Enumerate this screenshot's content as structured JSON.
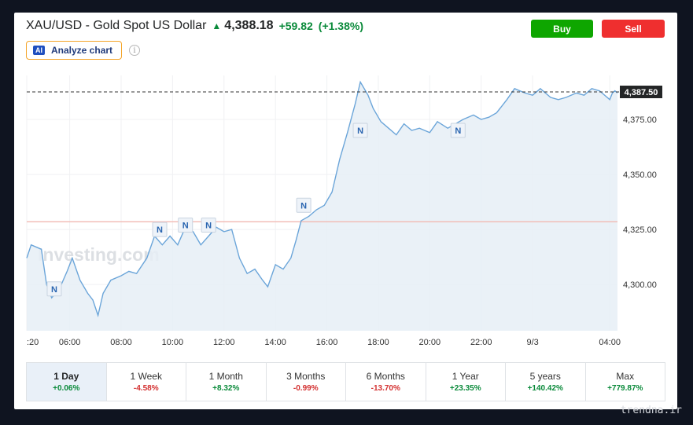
{
  "header": {
    "title": "XAU/USD - Gold Spot US Dollar",
    "price": "4,388.18",
    "change": "+59.82",
    "change_pct": "(+1.38%)",
    "direction_icon": "arrow-up-icon",
    "buy_label": "Buy",
    "sell_label": "Sell",
    "analyze_badge": "AI",
    "analyze_label": "Analyze chart",
    "info_icon": "i"
  },
  "colors": {
    "up": "#0a8a3a",
    "down": "#d32f2f",
    "buy": "#0ea600",
    "sell": "#ef2f2f",
    "line": "#6ba5d9",
    "area": "#e6eef6",
    "ref_line": "#f2b8b2",
    "last_price_bg": "#232526"
  },
  "chart_data": {
    "type": "area",
    "x_labels": [
      ":20",
      "06:00",
      "08:00",
      "10:00",
      "12:00",
      "14:00",
      "16:00",
      "18:00",
      "20:00",
      "22:00",
      "9/3",
      "04:00"
    ],
    "x_label_hours": [
      4.33,
      6,
      8,
      10,
      12,
      14,
      16,
      18,
      20,
      22,
      24,
      27
    ],
    "y_ticks": [
      4300,
      4325,
      4350,
      4375
    ],
    "y_tick_labels": [
      "4,300.00",
      "4,325.00",
      "4,350.00",
      "4,375.00"
    ],
    "ylim": [
      4279,
      4395
    ],
    "xlim": [
      4.33,
      27.3
    ],
    "reference_value": 4328.5,
    "last_value": 4387.5,
    "last_label": "4,387.50",
    "watermark": "Investing.com",
    "x": [
      4.33,
      4.5,
      4.9,
      5.1,
      5.3,
      5.6,
      5.9,
      6.1,
      6.4,
      6.7,
      6.9,
      7.1,
      7.3,
      7.6,
      8.0,
      8.3,
      8.6,
      9.0,
      9.3,
      9.6,
      9.9,
      10.2,
      10.5,
      10.8,
      11.1,
      11.4,
      11.7,
      12.0,
      12.3,
      12.6,
      12.9,
      13.2,
      13.5,
      13.7,
      14.0,
      14.3,
      14.6,
      14.8,
      15.0,
      15.3,
      15.6,
      15.9,
      16.2,
      16.5,
      16.8,
      17.1,
      17.3,
      17.6,
      17.8,
      18.1,
      18.4,
      18.7,
      19.0,
      19.3,
      19.6,
      20.0,
      20.3,
      20.7,
      21.0,
      21.3,
      21.7,
      22.0,
      22.3,
      22.6,
      23.0,
      23.3,
      23.7,
      24.0,
      24.3,
      24.7,
      25.0,
      25.3,
      25.7,
      26.0,
      26.3,
      26.6,
      27.0,
      27.1,
      27.2,
      27.3
    ],
    "y": [
      4312,
      4318,
      4316,
      4300,
      4294,
      4298,
      4306,
      4312,
      4302,
      4296,
      4293,
      4286,
      4296,
      4302,
      4304,
      4306,
      4305,
      4312,
      4322,
      4318,
      4322,
      4318,
      4326,
      4324,
      4318,
      4322,
      4326,
      4324,
      4325,
      4312,
      4305,
      4307,
      4302,
      4299,
      4309,
      4307,
      4312,
      4320,
      4329,
      4331,
      4334,
      4336,
      4342,
      4357,
      4369,
      4382,
      4392,
      4386,
      4380,
      4374,
      4371,
      4368,
      4373,
      4370,
      4371,
      4369,
      4374,
      4371,
      4373,
      4375,
      4377,
      4375,
      4376,
      4378,
      4384,
      4389,
      4387,
      4386,
      4389,
      4385,
      4384,
      4385,
      4387,
      4386,
      4389,
      4388,
      4384,
      4387,
      4388,
      4387
    ],
    "news_markers": [
      {
        "x": 5.4,
        "y": 4298,
        "label": "N"
      },
      {
        "x": 9.5,
        "y": 4325,
        "label": "N"
      },
      {
        "x": 10.5,
        "y": 4327,
        "label": "N"
      },
      {
        "x": 11.4,
        "y": 4327,
        "label": "N"
      },
      {
        "x": 15.1,
        "y": 4336,
        "label": "N"
      },
      {
        "x": 17.3,
        "y": 4370,
        "label": "N"
      },
      {
        "x": 21.1,
        "y": 4370,
        "label": "N"
      }
    ]
  },
  "periods": [
    {
      "label": "1 Day",
      "change": "+0.06%",
      "dir": "up",
      "active": true
    },
    {
      "label": "1 Week",
      "change": "-4.58%",
      "dir": "down",
      "active": false
    },
    {
      "label": "1 Month",
      "change": "+8.32%",
      "dir": "up",
      "active": false
    },
    {
      "label": "3 Months",
      "change": "-0.99%",
      "dir": "down",
      "active": false
    },
    {
      "label": "6 Months",
      "change": "-13.70%",
      "dir": "down",
      "active": false
    },
    {
      "label": "1 Year",
      "change": "+23.35%",
      "dir": "up",
      "active": false
    },
    {
      "label": "5 years",
      "change": "+140.42%",
      "dir": "up",
      "active": false
    },
    {
      "label": "Max",
      "change": "+779.87%",
      "dir": "up",
      "active": false
    }
  ],
  "watermark_site": "trendna.ir"
}
